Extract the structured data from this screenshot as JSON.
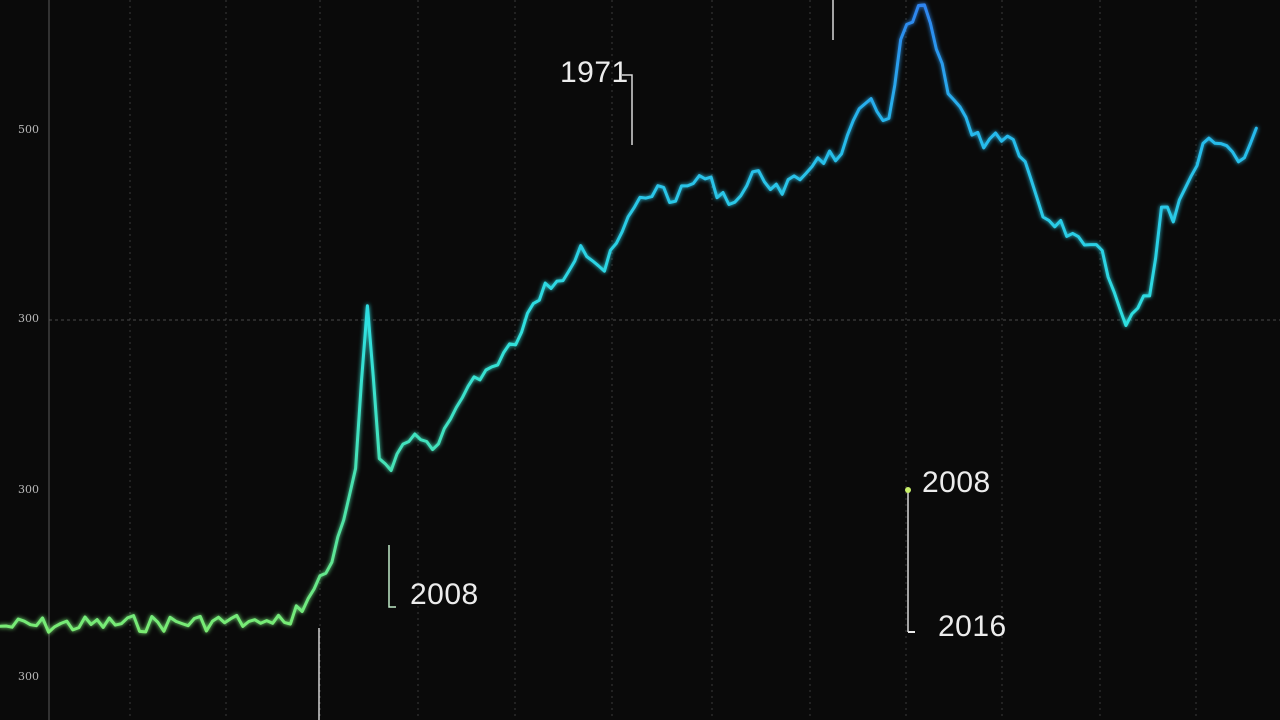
{
  "colors": {
    "background": "#0a0a0a",
    "line_low": "#9cf24a",
    "line_mid": "#2fe0e0",
    "line_high": "#2e82f0",
    "grid": "#3a3a3a"
  },
  "y_ticks": [
    "300",
    "300",
    "300",
    "500"
  ],
  "annotations": [
    {
      "label": "1971"
    },
    {
      "label": "2008"
    },
    {
      "label": "2008"
    },
    {
      "label": "2016"
    }
  ],
  "chart_data": {
    "type": "line",
    "title": "",
    "xlabel": "",
    "ylabel": "",
    "grid": true,
    "x_unit": "index",
    "series": [
      {
        "x": [
          0,
          21,
          22,
          23,
          24,
          26,
          28,
          30,
          31,
          32,
          33,
          35,
          37,
          38,
          40,
          42,
          44,
          46,
          47,
          49,
          51,
          54,
          56,
          57,
          59,
          62,
          64,
          66,
          69,
          71,
          73,
          75,
          76,
          78,
          80,
          83,
          85,
          87,
          88,
          89,
          91,
          92,
          93,
          95,
          97,
          98,
          99,
          101,
          102,
          105,
          106
        ],
        "values": [
          95,
          100,
          98,
          98,
          99,
          123,
          160,
          255,
          420,
          265,
          253,
          290,
          280,
          305,
          348,
          360,
          393,
          443,
          445,
          481,
          455,
          530,
          540,
          526,
          552,
          525,
          557,
          533,
          570,
          574,
          625,
          610,
          690,
          725,
          635,
          580,
          592,
          548,
          510,
          500,
          490,
          482,
          476,
          400,
          430,
          520,
          505,
          562,
          590,
          570,
          600
        ]
      }
    ]
  }
}
